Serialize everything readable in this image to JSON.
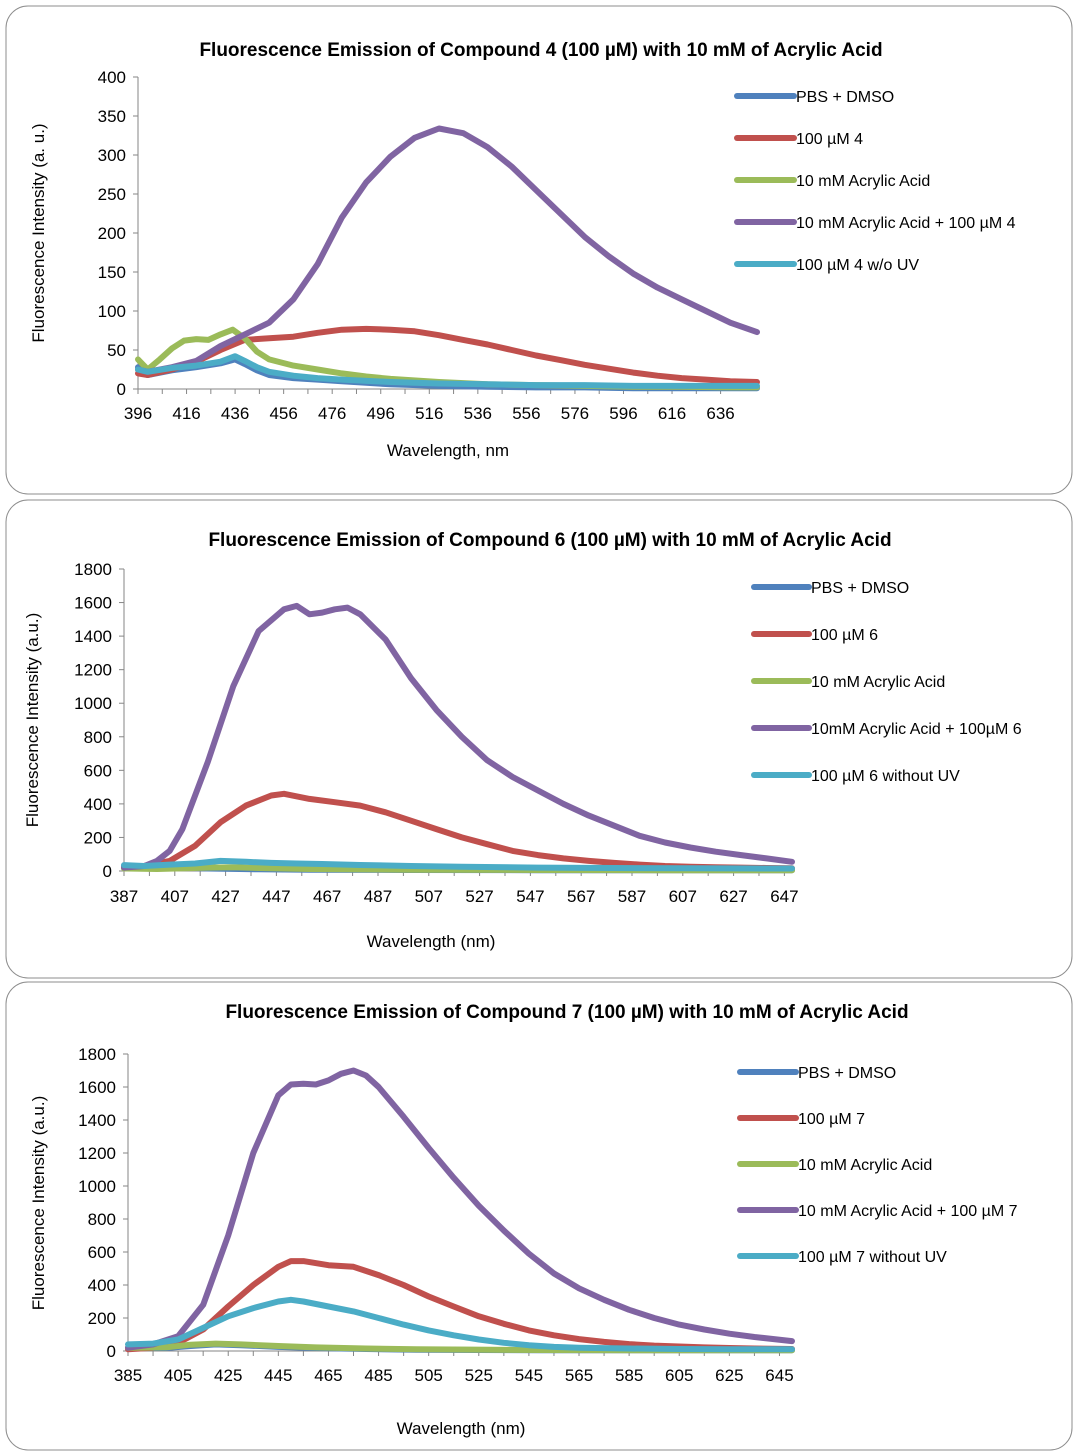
{
  "colors": {
    "pbs": "#4F81BD",
    "compound": "#C0504D",
    "acid": "#9BBB59",
    "acid_compound": "#8064A2",
    "no_uv": "#4BACC6"
  },
  "chart_data": [
    {
      "type": "line",
      "title": "Fluorescence Emission of Compound 4 (100 µM) with 10 mM of Acrylic  Acid",
      "xlabel": "Wavelength, nm",
      "ylabel": "Fluorescence Intensity (a. u.)",
      "xlim": [
        396,
        651
      ],
      "ylim": [
        0,
        400
      ],
      "xticks": [
        396,
        416,
        436,
        456,
        476,
        496,
        516,
        536,
        556,
        576,
        596,
        616,
        636
      ],
      "yticks": [
        0,
        50,
        100,
        150,
        200,
        250,
        300,
        350,
        400
      ],
      "legend_position": "right",
      "grid": false,
      "series": [
        {
          "name": "PBS + DMSO",
          "color_key": "pbs",
          "x": [
            396,
            400,
            410,
            420,
            430,
            436,
            440,
            445,
            450,
            460,
            470,
            480,
            490,
            500,
            520,
            540,
            560,
            580,
            600,
            620,
            640,
            651
          ],
          "y": [
            28,
            18,
            24,
            28,
            33,
            38,
            32,
            24,
            18,
            14,
            12,
            10,
            8,
            6,
            4,
            3,
            2,
            2,
            1,
            1,
            1,
            1
          ]
        },
        {
          "name": "100 µM 4",
          "color_key": "compound",
          "x": [
            396,
            400,
            410,
            420,
            430,
            440,
            450,
            460,
            470,
            480,
            490,
            500,
            510,
            520,
            530,
            540,
            550,
            560,
            570,
            580,
            590,
            600,
            610,
            620,
            630,
            640,
            651
          ],
          "y": [
            20,
            18,
            25,
            35,
            50,
            63,
            65,
            67,
            72,
            76,
            77,
            76,
            74,
            69,
            63,
            57,
            50,
            43,
            37,
            31,
            26,
            21,
            17,
            14,
            12,
            10,
            9
          ]
        },
        {
          "name": "10 mM Acrylic Acid",
          "color_key": "acid",
          "x": [
            396,
            400,
            405,
            410,
            415,
            420,
            425,
            430,
            435,
            440,
            445,
            450,
            460,
            470,
            480,
            490,
            500,
            520,
            540,
            560,
            580,
            600,
            620,
            640,
            651
          ],
          "y": [
            38,
            25,
            38,
            52,
            62,
            64,
            63,
            70,
            76,
            65,
            48,
            38,
            30,
            25,
            20,
            16,
            13,
            9,
            6,
            5,
            4,
            3,
            3,
            2,
            2
          ]
        },
        {
          "name": "10 mM Acrylic Acid + 100 µM 4",
          "color_key": "acid_compound",
          "x": [
            396,
            400,
            410,
            420,
            430,
            440,
            450,
            460,
            470,
            480,
            490,
            500,
            510,
            520,
            530,
            540,
            550,
            560,
            570,
            580,
            590,
            600,
            610,
            620,
            630,
            640,
            651
          ],
          "y": [
            25,
            22,
            28,
            36,
            55,
            70,
            85,
            115,
            160,
            220,
            265,
            298,
            322,
            334,
            328,
            310,
            285,
            255,
            225,
            195,
            170,
            148,
            130,
            115,
            100,
            85,
            73
          ]
        },
        {
          "name": "100 µM 4 w/o UV",
          "color_key": "no_uv",
          "x": [
            396,
            400,
            410,
            420,
            430,
            436,
            440,
            445,
            450,
            460,
            470,
            480,
            500,
            520,
            540,
            560,
            580,
            600,
            620,
            640,
            651
          ],
          "y": [
            25,
            22,
            27,
            30,
            35,
            42,
            36,
            28,
            22,
            17,
            14,
            12,
            9,
            7,
            6,
            5,
            5,
            4,
            4,
            4,
            4
          ]
        }
      ]
    },
    {
      "type": "line",
      "title": "Fluorescence Emission of Compound 6 (100 µM) with 10 mM of Acrylic Acid",
      "xlabel": "Wavelength (nm)",
      "ylabel": "Fluorescence Intensity (a.u.)",
      "xlim": [
        387,
        650
      ],
      "ylim": [
        0,
        1800
      ],
      "xticks": [
        387,
        407,
        427,
        447,
        467,
        487,
        507,
        527,
        547,
        567,
        587,
        607,
        627,
        647
      ],
      "yticks": [
        0,
        200,
        400,
        600,
        800,
        1000,
        1200,
        1400,
        1600,
        1800
      ],
      "legend_position": "right",
      "grid": false,
      "series": [
        {
          "name": "PBS + DMSO",
          "color_key": "pbs",
          "x": [
            387,
            400,
            420,
            440,
            460,
            500,
            550,
            600,
            650
          ],
          "y": [
            30,
            25,
            15,
            10,
            8,
            6,
            5,
            5,
            5
          ]
        },
        {
          "name": "100 µM 6",
          "color_key": "compound",
          "x": [
            387,
            395,
            405,
            415,
            425,
            435,
            445,
            450,
            460,
            470,
            480,
            490,
            500,
            510,
            520,
            530,
            540,
            550,
            560,
            570,
            580,
            590,
            600,
            610,
            620,
            630,
            640,
            650
          ],
          "y": [
            20,
            30,
            60,
            150,
            290,
            390,
            450,
            460,
            430,
            410,
            390,
            350,
            300,
            250,
            200,
            160,
            120,
            95,
            75,
            60,
            48,
            38,
            30,
            25,
            22,
            20,
            18,
            16
          ]
        },
        {
          "name": "10 mM Acrylic Acid",
          "color_key": "acid",
          "x": [
            387,
            400,
            420,
            430,
            440,
            460,
            500,
            550,
            600,
            650
          ],
          "y": [
            15,
            12,
            20,
            22,
            18,
            12,
            8,
            6,
            5,
            5
          ]
        },
        {
          "name": "10mM Acrylic Acid + 100µM 6",
          "color_key": "acid_compound",
          "x": [
            387,
            395,
            400,
            405,
            410,
            420,
            430,
            440,
            450,
            455,
            460,
            465,
            470,
            475,
            480,
            490,
            500,
            510,
            520,
            530,
            540,
            550,
            560,
            570,
            580,
            590,
            600,
            610,
            620,
            630,
            640,
            650
          ],
          "y": [
            20,
            30,
            60,
            120,
            250,
            650,
            1100,
            1430,
            1560,
            1580,
            1530,
            1540,
            1560,
            1570,
            1530,
            1380,
            1150,
            960,
            800,
            660,
            560,
            480,
            400,
            330,
            270,
            210,
            170,
            140,
            115,
            95,
            75,
            55
          ]
        },
        {
          "name": "100 µM 6 without UV",
          "color_key": "no_uv",
          "x": [
            387,
            395,
            405,
            415,
            425,
            435,
            445,
            455,
            465,
            480,
            500,
            520,
            550,
            580,
            610,
            650
          ],
          "y": [
            35,
            30,
            38,
            45,
            60,
            55,
            48,
            45,
            42,
            36,
            30,
            25,
            20,
            18,
            16,
            15
          ]
        }
      ]
    },
    {
      "type": "line",
      "title": "Fluorescence Emission of Compound 7 (100 µM) with 10 mM of Acrylic Acid",
      "xlabel": "Wavelength (nm)",
      "ylabel": "Fluorescence Intensity (a.u.)",
      "xlim": [
        385,
        650
      ],
      "ylim": [
        0,
        1800
      ],
      "xticks": [
        385,
        405,
        425,
        445,
        465,
        485,
        505,
        525,
        545,
        565,
        585,
        605,
        625,
        645
      ],
      "yticks": [
        0,
        200,
        400,
        600,
        800,
        1000,
        1200,
        1400,
        1600,
        1800
      ],
      "legend_position": "right",
      "grid": false,
      "series": [
        {
          "name": "PBS + DMSO",
          "color_key": "pbs",
          "x": [
            385,
            400,
            410,
            420,
            430,
            445,
            460,
            480,
            500,
            550,
            600,
            650
          ],
          "y": [
            20,
            18,
            30,
            40,
            35,
            25,
            18,
            12,
            8,
            5,
            4,
            4
          ]
        },
        {
          "name": "100 µM 7",
          "color_key": "compound",
          "x": [
            385,
            395,
            405,
            415,
            425,
            435,
            445,
            450,
            455,
            465,
            475,
            485,
            495,
            505,
            515,
            525,
            535,
            545,
            555,
            565,
            575,
            585,
            595,
            605,
            615,
            625,
            635,
            650
          ],
          "y": [
            10,
            20,
            50,
            130,
            270,
            400,
            510,
            545,
            545,
            520,
            510,
            460,
            400,
            330,
            270,
            210,
            165,
            125,
            95,
            72,
            55,
            42,
            33,
            27,
            22,
            18,
            15,
            12
          ]
        },
        {
          "name": "10 mM Acrylic Acid",
          "color_key": "acid",
          "x": [
            385,
            400,
            410,
            420,
            430,
            445,
            460,
            480,
            500,
            550,
            600,
            650
          ],
          "y": [
            20,
            22,
            38,
            45,
            40,
            30,
            22,
            15,
            10,
            6,
            4,
            4
          ]
        },
        {
          "name": "10 mM Acrylic Acid + 100 µM 7",
          "color_key": "acid_compound",
          "x": [
            385,
            395,
            405,
            415,
            425,
            435,
            445,
            450,
            455,
            460,
            465,
            470,
            475,
            480,
            485,
            495,
            505,
            515,
            525,
            535,
            545,
            555,
            565,
            575,
            585,
            595,
            605,
            615,
            625,
            635,
            650
          ],
          "y": [
            20,
            40,
            90,
            280,
            700,
            1200,
            1550,
            1615,
            1620,
            1615,
            1640,
            1680,
            1700,
            1670,
            1600,
            1420,
            1230,
            1050,
            880,
            730,
            590,
            470,
            380,
            310,
            250,
            200,
            160,
            130,
            105,
            85,
            60
          ]
        },
        {
          "name": "100 µM 7 without UV",
          "color_key": "no_uv",
          "x": [
            385,
            395,
            405,
            415,
            425,
            435,
            445,
            450,
            455,
            465,
            475,
            485,
            495,
            505,
            515,
            525,
            535,
            545,
            555,
            565,
            585,
            605,
            625,
            650
          ],
          "y": [
            40,
            45,
            70,
            140,
            210,
            260,
            300,
            310,
            300,
            270,
            240,
            200,
            160,
            125,
            95,
            70,
            50,
            35,
            25,
            20,
            15,
            12,
            10,
            10
          ]
        }
      ]
    }
  ]
}
